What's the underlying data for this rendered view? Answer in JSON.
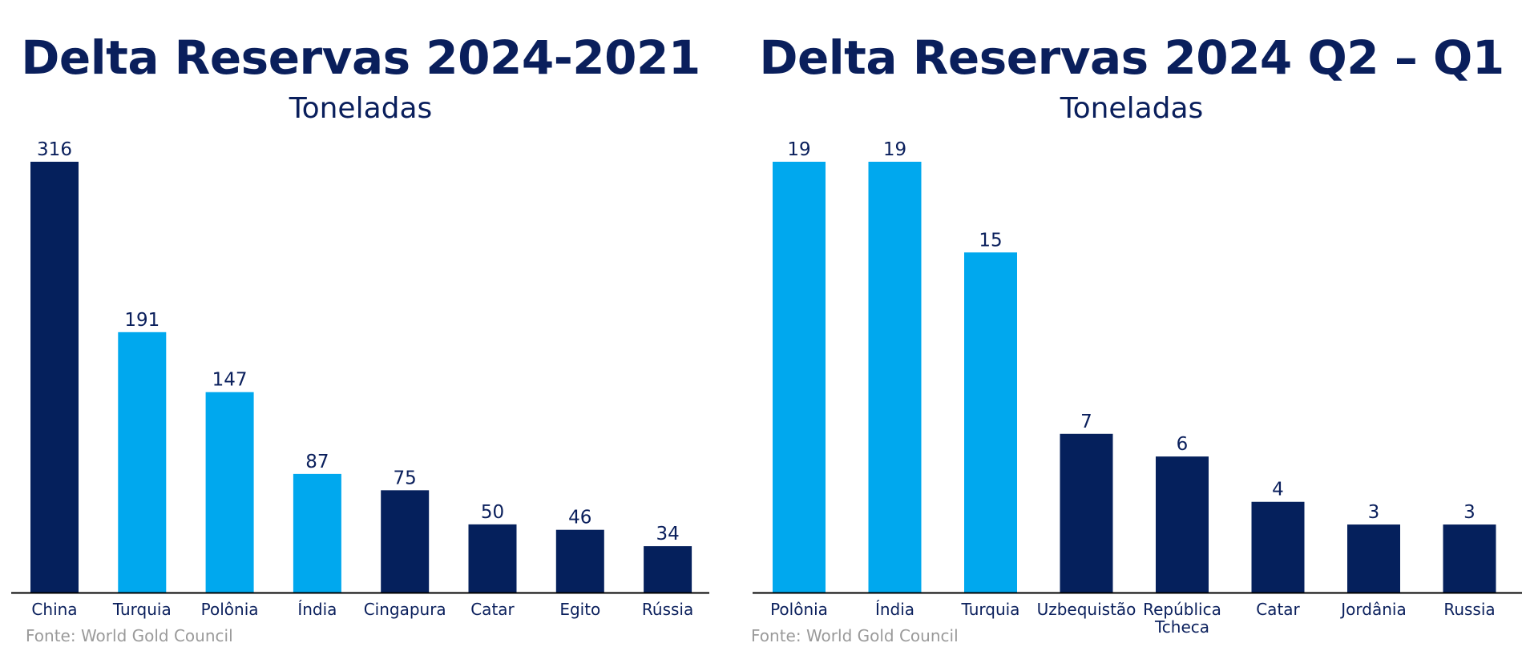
{
  "colors": {
    "dark": "#05205c",
    "light": "#00a8ee",
    "axis": "#000000",
    "source": "#9a9a9a"
  },
  "chart_data": [
    {
      "type": "bar",
      "title": "Delta Reservas 2024-2021",
      "subtitle": "Toneladas",
      "categories": [
        "China",
        "Turquia",
        "Polônia",
        "Índia",
        "Cingapura",
        "Catar",
        "Egito",
        "Rússia"
      ],
      "values": [
        316,
        191,
        147,
        87,
        75,
        50,
        46,
        34
      ],
      "bar_colors": [
        "dark",
        "light",
        "light",
        "light",
        "dark",
        "dark",
        "dark",
        "dark"
      ],
      "ylim": [
        0,
        316
      ],
      "source": "Fonte: World Gold Council"
    },
    {
      "type": "bar",
      "title": "Delta Reservas 2024 Q2 – Q1",
      "subtitle": "Toneladas",
      "categories": [
        "Polônia",
        "Índia",
        "Turquia",
        "Uzbequistão",
        "República\nTcheca",
        "Catar",
        "Jordânia",
        "Russia"
      ],
      "values": [
        19,
        19,
        15,
        7,
        6,
        4,
        3,
        3
      ],
      "bar_colors": [
        "light",
        "light",
        "light",
        "dark",
        "dark",
        "dark",
        "dark",
        "dark"
      ],
      "ylim": [
        0,
        19
      ],
      "source": "Fonte: World Gold Council"
    }
  ]
}
